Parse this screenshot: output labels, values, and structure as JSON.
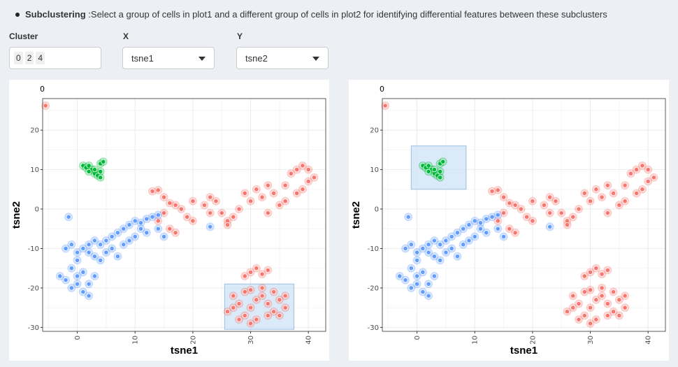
{
  "instruction": {
    "title": "Subclustering",
    "text": " :Select a group of cells in plot1 and a different group of cells in plot2 for identifying differential features between these subclusters"
  },
  "controls": {
    "cluster_label": "Cluster",
    "cluster_values": [
      "0",
      "2",
      "4"
    ],
    "x_label": "X",
    "x_value": "tsne1",
    "y_label": "Y",
    "y_value": "tsne2"
  },
  "colors": {
    "cluster_red": "#f8766d",
    "cluster_green": "#00ba38",
    "cluster_blue": "#619cff",
    "selection_fill": "#cfe3f7"
  },
  "chart_data": [
    {
      "type": "scatter",
      "panel_title": "0",
      "xlabel": "tsne1",
      "ylabel": "tsne2",
      "xlim": [
        -6,
        43
      ],
      "ylim": [
        -31,
        28
      ],
      "xticks": [
        0,
        10,
        20,
        30,
        40
      ],
      "yticks": [
        -30,
        -20,
        -10,
        0,
        10,
        20
      ],
      "grid": true,
      "selection": {
        "x": [
          25.5,
          37.5
        ],
        "y": [
          -30.5,
          -19
        ]
      },
      "series": [
        {
          "color": "#f8766d",
          "points": [
            [
              -5.5,
              26.2
            ],
            [
              14,
              4.8
            ],
            [
              13,
              4.5
            ],
            [
              15,
              3
            ],
            [
              16,
              1.5
            ],
            [
              17,
              1
            ],
            [
              18,
              0
            ],
            [
              14,
              -3
            ],
            [
              16,
              -5
            ],
            [
              17,
              -6
            ],
            [
              20,
              -3
            ],
            [
              22,
              1
            ],
            [
              23,
              3
            ],
            [
              25,
              -1
            ],
            [
              26,
              -3
            ],
            [
              28,
              0
            ],
            [
              30,
              2
            ],
            [
              32,
              3
            ],
            [
              34,
              4
            ],
            [
              36,
              6
            ],
            [
              37,
              9
            ],
            [
              38,
              10
            ],
            [
              40,
              7
            ],
            [
              41,
              8
            ],
            [
              39,
              5
            ],
            [
              35,
              1
            ],
            [
              33,
              -1
            ],
            [
              27,
              -2
            ],
            [
              26,
              -4
            ],
            [
              24,
              2
            ],
            [
              29,
              4
            ],
            [
              31,
              5
            ],
            [
              36,
              2
            ],
            [
              38,
              4
            ],
            [
              40,
              10
            ],
            [
              39,
              11
            ],
            [
              33,
              6
            ],
            [
              23,
              -1
            ],
            [
              19,
              -2
            ],
            [
              15,
              -1
            ],
            [
              20,
              2
            ],
            [
              30,
              -16
            ],
            [
              31,
              -15
            ],
            [
              32,
              -16.5
            ],
            [
              33,
              -15.5
            ],
            [
              29,
              -17
            ],
            [
              27,
              -22
            ],
            [
              28,
              -24
            ],
            [
              29,
              -21
            ],
            [
              30,
              -25
            ],
            [
              31,
              -23
            ],
            [
              32,
              -22
            ],
            [
              33,
              -24
            ],
            [
              34,
              -21
            ],
            [
              35,
              -23
            ],
            [
              36,
              -25
            ],
            [
              33,
              -27
            ],
            [
              31,
              -28
            ],
            [
              29,
              -27
            ],
            [
              27,
              -25
            ],
            [
              26,
              -26
            ],
            [
              28,
              -28
            ],
            [
              30,
              -29
            ],
            [
              34,
              -26
            ],
            [
              35,
              -27
            ],
            [
              32,
              -20
            ],
            [
              30,
              -20.5
            ],
            [
              36,
              -22
            ]
          ]
        },
        {
          "color": "#00ba38",
          "points": [
            [
              1,
              11
            ],
            [
              1.5,
              10.5
            ],
            [
              2,
              11
            ],
            [
              2.5,
              10
            ],
            [
              3,
              9
            ],
            [
              3.5,
              8.5
            ],
            [
              4,
              9.5
            ],
            [
              4,
              11.5
            ],
            [
              4.5,
              12
            ],
            [
              3,
              10
            ],
            [
              2,
              9.5
            ],
            [
              4,
              8
            ]
          ]
        },
        {
          "color": "#619cff",
          "points": [
            [
              -2,
              -10
            ],
            [
              -1,
              -9
            ],
            [
              0,
              -11
            ],
            [
              1,
              -10
            ],
            [
              2,
              -9
            ],
            [
              3,
              -8
            ],
            [
              4,
              -9
            ],
            [
              5,
              -8
            ],
            [
              6,
              -7
            ],
            [
              7,
              -6
            ],
            [
              8,
              -5
            ],
            [
              9,
              -4
            ],
            [
              10,
              -3
            ],
            [
              11,
              -3.5
            ],
            [
              12,
              -2.5
            ],
            [
              13,
              -2
            ],
            [
              14,
              -1.5
            ],
            [
              2,
              -11
            ],
            [
              3,
              -12
            ],
            [
              4,
              -13
            ],
            [
              5,
              -11
            ],
            [
              6,
              -10
            ],
            [
              7,
              -12
            ],
            [
              8,
              -9
            ],
            [
              9,
              -8
            ],
            [
              10,
              -7
            ],
            [
              -3,
              -17
            ],
            [
              -2,
              -18
            ],
            [
              -1,
              -20
            ],
            [
              0,
              -19
            ],
            [
              1,
              -21
            ],
            [
              2,
              -19
            ],
            [
              3,
              -17
            ],
            [
              1,
              -16
            ],
            [
              0,
              -17
            ],
            [
              2,
              -22
            ],
            [
              -1,
              -15
            ],
            [
              0,
              -13
            ],
            [
              -1.5,
              -2
            ],
            [
              23,
              -4.5
            ],
            [
              12,
              -6
            ],
            [
              11,
              -5
            ],
            [
              14,
              -5
            ],
            [
              15,
              -7
            ]
          ]
        }
      ]
    },
    {
      "type": "scatter",
      "panel_title": "0",
      "xlabel": "tsne1",
      "ylabel": "tsne2",
      "xlim": [
        -6,
        43
      ],
      "ylim": [
        -31,
        28
      ],
      "xticks": [
        0,
        10,
        20,
        30,
        40
      ],
      "yticks": [
        -30,
        -20,
        -10,
        0,
        10,
        20
      ],
      "grid": true,
      "selection": {
        "x": [
          -1,
          8.5
        ],
        "y": [
          5,
          16
        ]
      },
      "series": [
        {
          "color": "#f8766d",
          "points": [
            [
              -5.5,
              26.2
            ],
            [
              14,
              4.8
            ],
            [
              13,
              4.5
            ],
            [
              15,
              3
            ],
            [
              16,
              1.5
            ],
            [
              17,
              1
            ],
            [
              18,
              0
            ],
            [
              14,
              -3
            ],
            [
              16,
              -5
            ],
            [
              17,
              -6
            ],
            [
              20,
              -3
            ],
            [
              22,
              1
            ],
            [
              23,
              3
            ],
            [
              25,
              -1
            ],
            [
              26,
              -3
            ],
            [
              28,
              0
            ],
            [
              30,
              2
            ],
            [
              32,
              3
            ],
            [
              34,
              4
            ],
            [
              36,
              6
            ],
            [
              37,
              9
            ],
            [
              38,
              10
            ],
            [
              40,
              7
            ],
            [
              41,
              8
            ],
            [
              39,
              5
            ],
            [
              35,
              1
            ],
            [
              33,
              -1
            ],
            [
              27,
              -2
            ],
            [
              26,
              -4
            ],
            [
              24,
              2
            ],
            [
              29,
              4
            ],
            [
              31,
              5
            ],
            [
              36,
              2
            ],
            [
              38,
              4
            ],
            [
              40,
              10
            ],
            [
              39,
              11
            ],
            [
              33,
              6
            ],
            [
              23,
              -1
            ],
            [
              19,
              -2
            ],
            [
              15,
              -1
            ],
            [
              20,
              2
            ],
            [
              30,
              -16
            ],
            [
              31,
              -15
            ],
            [
              32,
              -16.5
            ],
            [
              33,
              -15.5
            ],
            [
              29,
              -17
            ],
            [
              27,
              -22
            ],
            [
              28,
              -24
            ],
            [
              29,
              -21
            ],
            [
              30,
              -25
            ],
            [
              31,
              -23
            ],
            [
              32,
              -22
            ],
            [
              33,
              -24
            ],
            [
              34,
              -21
            ],
            [
              35,
              -23
            ],
            [
              36,
              -25
            ],
            [
              33,
              -27
            ],
            [
              31,
              -28
            ],
            [
              29,
              -27
            ],
            [
              27,
              -25
            ],
            [
              26,
              -26
            ],
            [
              28,
              -28
            ],
            [
              30,
              -29
            ],
            [
              34,
              -26
            ],
            [
              35,
              -27
            ],
            [
              32,
              -20
            ],
            [
              30,
              -20.5
            ],
            [
              36,
              -22
            ]
          ]
        },
        {
          "color": "#00ba38",
          "points": [
            [
              1,
              11
            ],
            [
              1.5,
              10.5
            ],
            [
              2,
              11
            ],
            [
              2.5,
              10
            ],
            [
              3,
              9
            ],
            [
              3.5,
              8.5
            ],
            [
              4,
              9.5
            ],
            [
              4,
              11.5
            ],
            [
              4.5,
              12
            ],
            [
              3,
              10
            ],
            [
              2,
              9.5
            ],
            [
              4,
              8
            ]
          ]
        },
        {
          "color": "#619cff",
          "points": [
            [
              -2,
              -10
            ],
            [
              -1,
              -9
            ],
            [
              0,
              -11
            ],
            [
              1,
              -10
            ],
            [
              2,
              -9
            ],
            [
              3,
              -8
            ],
            [
              4,
              -9
            ],
            [
              5,
              -8
            ],
            [
              6,
              -7
            ],
            [
              7,
              -6
            ],
            [
              8,
              -5
            ],
            [
              9,
              -4
            ],
            [
              10,
              -3
            ],
            [
              11,
              -3.5
            ],
            [
              12,
              -2.5
            ],
            [
              13,
              -2
            ],
            [
              14,
              -1.5
            ],
            [
              2,
              -11
            ],
            [
              3,
              -12
            ],
            [
              4,
              -13
            ],
            [
              5,
              -11
            ],
            [
              6,
              -10
            ],
            [
              7,
              -12
            ],
            [
              8,
              -9
            ],
            [
              9,
              -8
            ],
            [
              10,
              -7
            ],
            [
              -3,
              -17
            ],
            [
              -2,
              -18
            ],
            [
              -1,
              -20
            ],
            [
              0,
              -19
            ],
            [
              1,
              -21
            ],
            [
              2,
              -19
            ],
            [
              3,
              -17
            ],
            [
              1,
              -16
            ],
            [
              0,
              -17
            ],
            [
              2,
              -22
            ],
            [
              -1,
              -15
            ],
            [
              0,
              -13
            ],
            [
              -1.5,
              -2
            ],
            [
              23,
              -4.5
            ],
            [
              12,
              -6
            ],
            [
              11,
              -5
            ],
            [
              14,
              -5
            ],
            [
              15,
              -7
            ]
          ]
        }
      ]
    }
  ]
}
